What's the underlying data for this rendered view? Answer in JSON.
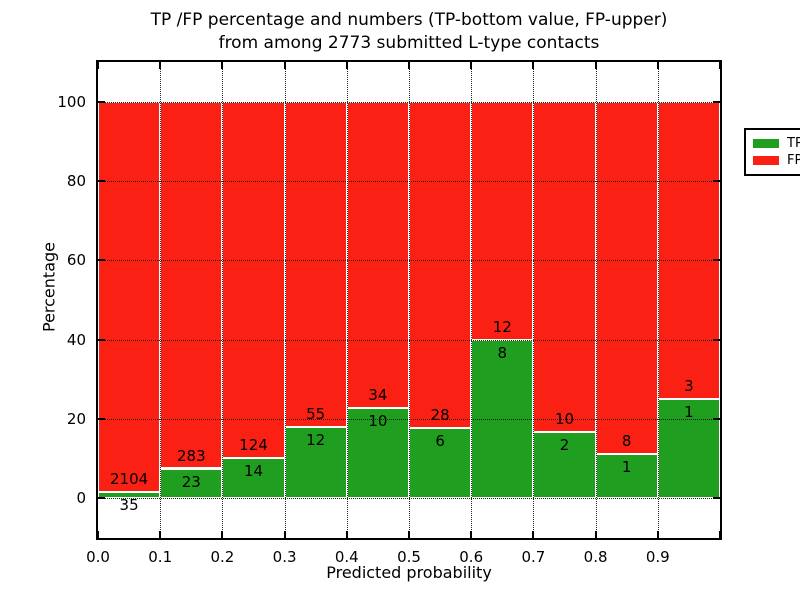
{
  "title": {
    "line1": "TP /FP percentage and numbers (TP-bottom value, FP-upper)",
    "line2": "from among 2773 submitted L-type contacts"
  },
  "axes": {
    "xlabel": "Predicted probability",
    "ylabel": "Percentage",
    "xlim": [
      0.0,
      1.0
    ],
    "ylim": [
      -10,
      110
    ],
    "x_tick_values": [
      0.0,
      0.1,
      0.2,
      0.3,
      0.4,
      0.5,
      0.6,
      0.7,
      0.8,
      0.9
    ],
    "x_tick_labels": [
      "0.0",
      "0.1",
      "0.2",
      "0.3",
      "0.4",
      "0.5",
      "0.6",
      "0.7",
      "0.8",
      "0.9"
    ],
    "x_tick_mark_values": [
      0.0,
      0.1,
      0.2,
      0.3,
      0.4,
      0.5,
      0.6,
      0.7,
      0.8,
      0.9,
      1.0
    ],
    "y_tick_values": [
      0,
      20,
      40,
      60,
      80,
      100
    ],
    "y_tick_labels": [
      "0",
      "20",
      "40",
      "60",
      "80",
      "100"
    ],
    "grid": true,
    "grid_style": "dotted"
  },
  "legend": {
    "position": "upper-right",
    "items": [
      {
        "label": "TP",
        "color": "#1f9e1f"
      },
      {
        "label": "FP",
        "color": "#fa2014"
      }
    ]
  },
  "colors": {
    "tp": "#1f9e1f",
    "fp": "#fa2014",
    "bar_edge": "#ffffff",
    "grid": "#000000",
    "background": "#ffffff"
  },
  "chart_data": {
    "type": "bar",
    "stacked": true,
    "normalized": "percent",
    "title": "TP /FP percentage and numbers (TP-bottom value, FP-upper) from among 2773 submitted L-type contacts",
    "xlabel": "Predicted probability",
    "ylabel": "Percentage",
    "total_contacts": 2773,
    "bin_start": [
      0.0,
      0.1,
      0.2,
      0.3,
      0.4,
      0.5,
      0.6,
      0.7,
      0.8,
      0.9
    ],
    "bin_width": 0.1,
    "series": [
      {
        "name": "TP",
        "color": "#1f9e1f",
        "counts": [
          35,
          23,
          14,
          12,
          10,
          6,
          8,
          2,
          1,
          1
        ],
        "percent": [
          1.64,
          7.52,
          10.14,
          17.91,
          22.73,
          17.65,
          40.0,
          16.67,
          11.11,
          25.0
        ]
      },
      {
        "name": "FP",
        "color": "#fa2014",
        "counts": [
          2104,
          283,
          124,
          55,
          34,
          28,
          12,
          10,
          8,
          3
        ],
        "percent": [
          98.36,
          92.48,
          89.86,
          82.09,
          77.27,
          82.35,
          60.0,
          83.33,
          88.89,
          75.0
        ]
      }
    ],
    "legend_position": "upper-right",
    "xlim": [
      0.0,
      1.0
    ],
    "ylim": [
      -10,
      110
    ]
  }
}
